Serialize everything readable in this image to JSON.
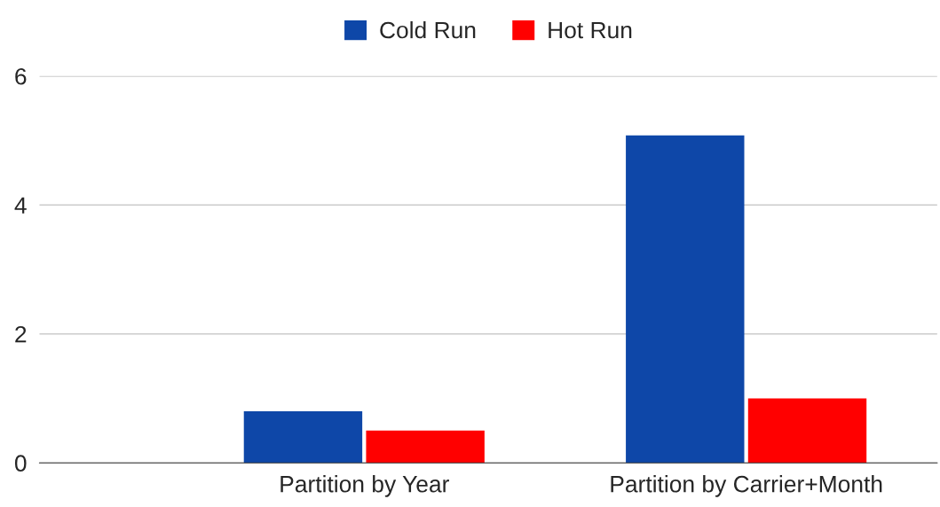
{
  "chart_data": {
    "type": "bar",
    "categories": [
      "Partition by Year",
      "Partition by Carrier+Month"
    ],
    "series": [
      {
        "name": "Cold Run",
        "color": "#0e47a8",
        "values": [
          0.8,
          5.08
        ]
      },
      {
        "name": "Hot Run",
        "color": "#ff0000",
        "values": [
          0.5,
          1.0
        ]
      }
    ],
    "ylim": [
      0,
      6
    ],
    "yticks": [
      0,
      2,
      4,
      6
    ],
    "grid": "y",
    "legend": "top"
  }
}
